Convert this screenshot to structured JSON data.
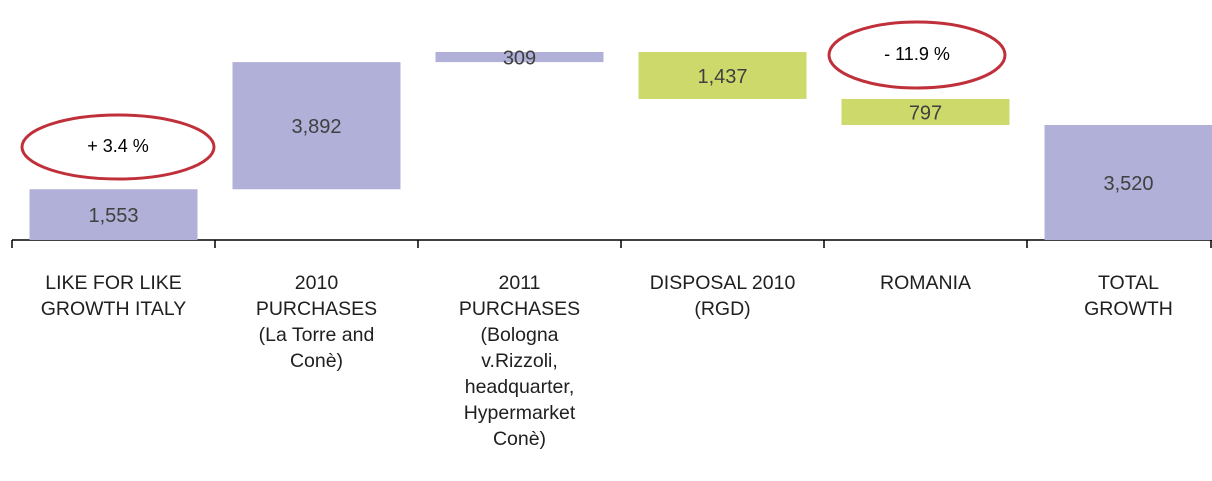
{
  "chart_data": {
    "type": "waterfall",
    "categories": [
      "LIKE FOR LIKE\nGROWTH ITALY",
      "2010\nPURCHASES\n(La Torre and\nConè)",
      "2011\nPURCHASES\n(Bologna\nv.Rizzoli,\nheadquarter,\nHypermarket\nConè)",
      "DISPOSAL 2010\n(RGD)",
      "ROMANIA",
      "TOTAL\nGROWTH"
    ],
    "values": [
      1553,
      3892,
      309,
      -1437,
      -797,
      3520
    ],
    "value_labels": [
      "1,553",
      "3,892",
      "309",
      "1,437",
      "797",
      "3,520"
    ],
    "measures": [
      "relative",
      "relative",
      "relative",
      "relative",
      "relative",
      "total"
    ],
    "increase_color": "#b0b0d8",
    "decrease_color": "#cdd96b",
    "annotations": [
      "+ 3.4 %",
      "- 11.9 %"
    ]
  }
}
